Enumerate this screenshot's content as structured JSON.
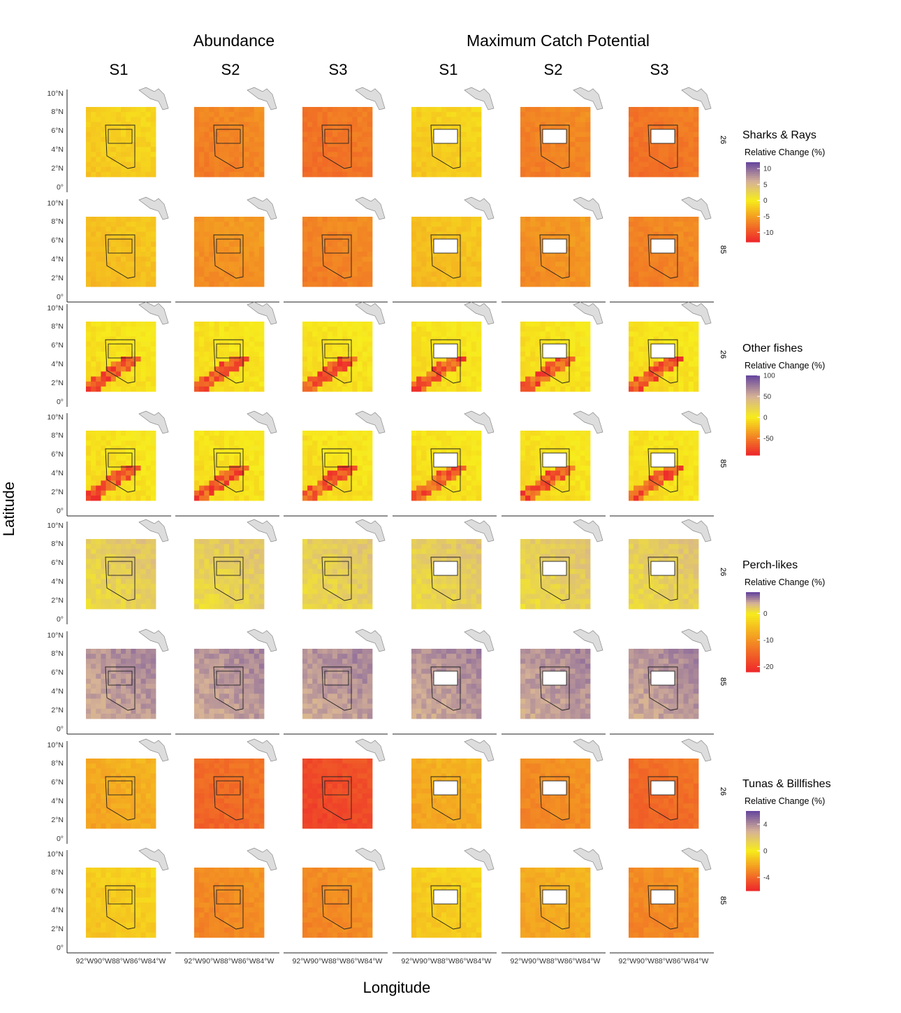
{
  "figure": {
    "group_headers": [
      "Abundance",
      "Maximum Catch Potential"
    ],
    "column_labels": [
      "S1",
      "S2",
      "S3",
      "S1",
      "S2",
      "S3"
    ],
    "x_axis_title": "Longitude",
    "y_axis_title": "Latitude",
    "x_ticks": [
      "92°W",
      "90°W",
      "88°W",
      "86°W",
      "84°W"
    ],
    "y_ticks": [
      "0°",
      "2°N",
      "4°N",
      "6°N",
      "8°N",
      "10°N"
    ],
    "row_labels": [
      "26",
      "85",
      "26",
      "85",
      "26",
      "85",
      "26",
      "85"
    ],
    "colors": {
      "land": "#dddddd",
      "outline": "#222222",
      "scale_low": "#ee2b2b",
      "scale_mid": "#f7ec1c",
      "scale_high": "#6a4a9e"
    }
  },
  "legends": [
    {
      "title": "Sharks & Rays",
      "subtitle": "Relative Change (%)",
      "ticks": [
        "10",
        "5",
        "0",
        "-5",
        "-10"
      ]
    },
    {
      "title": "Other fishes",
      "subtitle": "Relative Change (%)",
      "ticks": [
        "100",
        "50",
        "0",
        "-50"
      ]
    },
    {
      "title": "Perch-likes",
      "subtitle": "Relative Change (%)",
      "ticks": [
        "0",
        "-10",
        "-20"
      ]
    },
    {
      "title": "Tunas & Billfishes",
      "subtitle": "Relative Change (%)",
      "ticks": [
        "4",
        "0",
        "-4"
      ]
    }
  ],
  "chart_data": {
    "type": "heatmap",
    "x": [
      "92°W",
      "90°W",
      "88°W",
      "86°W",
      "84°W"
    ],
    "y": [
      "0°",
      "2°N",
      "4°N",
      "6°N",
      "8°N",
      "10°N"
    ],
    "columns": [
      "Abundance S1",
      "Abundance S2",
      "Abundance S3",
      "Maximum Catch Potential S1",
      "Maximum Catch Potential S2",
      "Maximum Catch Potential S3"
    ],
    "rows": [
      "Sharks & Rays 26",
      "Sharks & Rays 85",
      "Other fishes 26",
      "Other fishes 85",
      "Perch-likes 26",
      "Perch-likes 85",
      "Tunas & Billfishes 26",
      "Tunas & Billfishes 85"
    ],
    "typical_relative_change_pct": [
      [
        -2,
        -7,
        -8,
        -2,
        -7,
        -8
      ],
      [
        -3,
        -6,
        -7,
        -3,
        -6,
        -7
      ],
      [
        -5,
        -5,
        -5,
        -5,
        -5,
        -5
      ],
      [
        -5,
        -5,
        -5,
        -5,
        -5,
        -5
      ],
      [
        2,
        2,
        2,
        2,
        2,
        2
      ],
      [
        5,
        5,
        5,
        5,
        5,
        5
      ],
      [
        -2,
        -4,
        -5,
        -2,
        -3,
        -4
      ],
      [
        -1,
        -3,
        -3,
        -1,
        -2,
        -3
      ]
    ],
    "scale_ranges": [
      [
        -13,
        12
      ],
      [
        -90,
        100
      ],
      [
        -22,
        8
      ],
      [
        -6,
        6
      ]
    ]
  }
}
